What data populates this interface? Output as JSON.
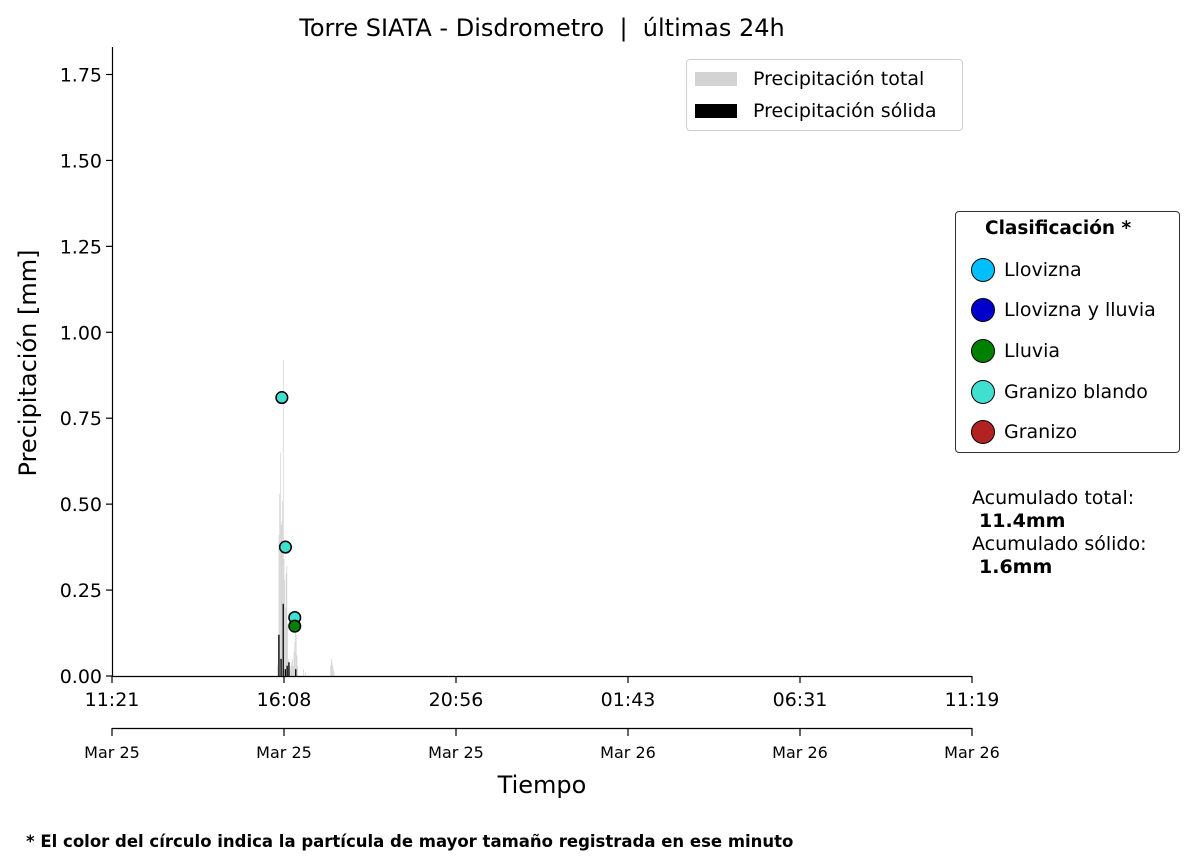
{
  "chart_data": {
    "type": "bar",
    "title": "Torre SIATA - Disdrometro  |  últimas 24h",
    "xlabel": "Tiempo",
    "ylabel": "Precipitación [mm]",
    "ylim": [
      0,
      1.83
    ],
    "yticks": [
      "0.00",
      "0.25",
      "0.50",
      "0.75",
      "1.00",
      "1.25",
      "1.50",
      "1.75"
    ],
    "xlim_hours": [
      0,
      24
    ],
    "xticks_time": [
      "11:21",
      "16:08",
      "20:56",
      "01:43",
      "06:31",
      "11:19"
    ],
    "xticks_date": [
      "Mar 25",
      "Mar 25",
      "Mar 25",
      "Mar 26",
      "Mar 26",
      "Mar 26"
    ],
    "legend": {
      "placement": "top-right",
      "entries": [
        {
          "name": "Precipitación total",
          "color": "#d3d3d3"
        },
        {
          "name": "Precipitación sólida",
          "color": "#000000"
        }
      ]
    },
    "series": [
      {
        "name": "Precipitación total",
        "color": "#d3d3d3",
        "points": [
          {
            "t": 4.62,
            "v": 0.03
          },
          {
            "t": 4.64,
            "v": 0.12
          },
          {
            "t": 4.66,
            "v": 0.41
          },
          {
            "t": 4.68,
            "v": 0.53
          },
          {
            "t": 4.7,
            "v": 0.65
          },
          {
            "t": 4.72,
            "v": 0.44
          },
          {
            "t": 4.74,
            "v": 0.45
          },
          {
            "t": 4.76,
            "v": 0.51
          },
          {
            "t": 4.78,
            "v": 0.92
          },
          {
            "t": 4.8,
            "v": 0.34
          },
          {
            "t": 4.82,
            "v": 0.28
          },
          {
            "t": 4.84,
            "v": 0.2
          },
          {
            "t": 4.86,
            "v": 0.3
          },
          {
            "t": 4.88,
            "v": 0.32
          },
          {
            "t": 4.9,
            "v": 0.15
          },
          {
            "t": 4.92,
            "v": 0.05
          },
          {
            "t": 4.94,
            "v": 0.04
          },
          {
            "t": 4.96,
            "v": 0.03
          },
          {
            "t": 4.98,
            "v": 0.02
          },
          {
            "t": 5.0,
            "v": 0.03
          },
          {
            "t": 5.02,
            "v": 0.04
          },
          {
            "t": 5.04,
            "v": 0.05
          },
          {
            "t": 5.06,
            "v": 0.03
          },
          {
            "t": 5.08,
            "v": 0.07
          },
          {
            "t": 5.1,
            "v": 0.1
          },
          {
            "t": 5.12,
            "v": 0.14
          },
          {
            "t": 5.14,
            "v": 0.12
          },
          {
            "t": 5.16,
            "v": 0.06
          },
          {
            "t": 5.18,
            "v": 0.03
          },
          {
            "t": 5.35,
            "v": 0.02
          },
          {
            "t": 5.4,
            "v": 0.01
          },
          {
            "t": 6.1,
            "v": 0.03
          },
          {
            "t": 6.12,
            "v": 0.05
          },
          {
            "t": 6.14,
            "v": 0.04
          },
          {
            "t": 6.16,
            "v": 0.03
          },
          {
            "t": 6.18,
            "v": 0.02
          },
          {
            "t": 6.2,
            "v": 0.01
          }
        ]
      },
      {
        "name": "Precipitación sólida",
        "color": "#000000",
        "points": [
          {
            "t": 4.65,
            "v": 0.12
          },
          {
            "t": 4.71,
            "v": 0.05
          },
          {
            "t": 4.77,
            "v": 0.21
          },
          {
            "t": 4.83,
            "v": 0.02
          },
          {
            "t": 4.88,
            "v": 0.03
          },
          {
            "t": 4.93,
            "v": 0.04
          },
          {
            "t": 5.12,
            "v": 0.02
          }
        ]
      }
    ],
    "particles": [
      {
        "t": 4.74,
        "v": 0.81,
        "class": "Granizo blando"
      },
      {
        "t": 4.84,
        "v": 0.375,
        "class": "Granizo blando"
      },
      {
        "t": 5.1,
        "v": 0.17,
        "class": "Granizo blando"
      },
      {
        "t": 5.1,
        "v": 0.145,
        "class": "Lluvia"
      }
    ],
    "classification": {
      "title": "Clasificación *",
      "classes": [
        {
          "name": "Llovizna",
          "color": "#00bfff"
        },
        {
          "name": "Llovizna y lluvia",
          "color": "#0000cd"
        },
        {
          "name": "Lluvia",
          "color": "#008000"
        },
        {
          "name": "Granizo blando",
          "color": "#40e0d0"
        },
        {
          "name": "Granizo",
          "color": "#b22222"
        }
      ]
    },
    "accumulated": {
      "total_label": "Acumulado total:",
      "total_value": "11.4mm",
      "solid_label": "Acumulado sólido:",
      "solid_value": "1.6mm"
    },
    "footnote": "* El color del círculo indica la partícula de mayor tamaño registrada en ese minuto"
  }
}
